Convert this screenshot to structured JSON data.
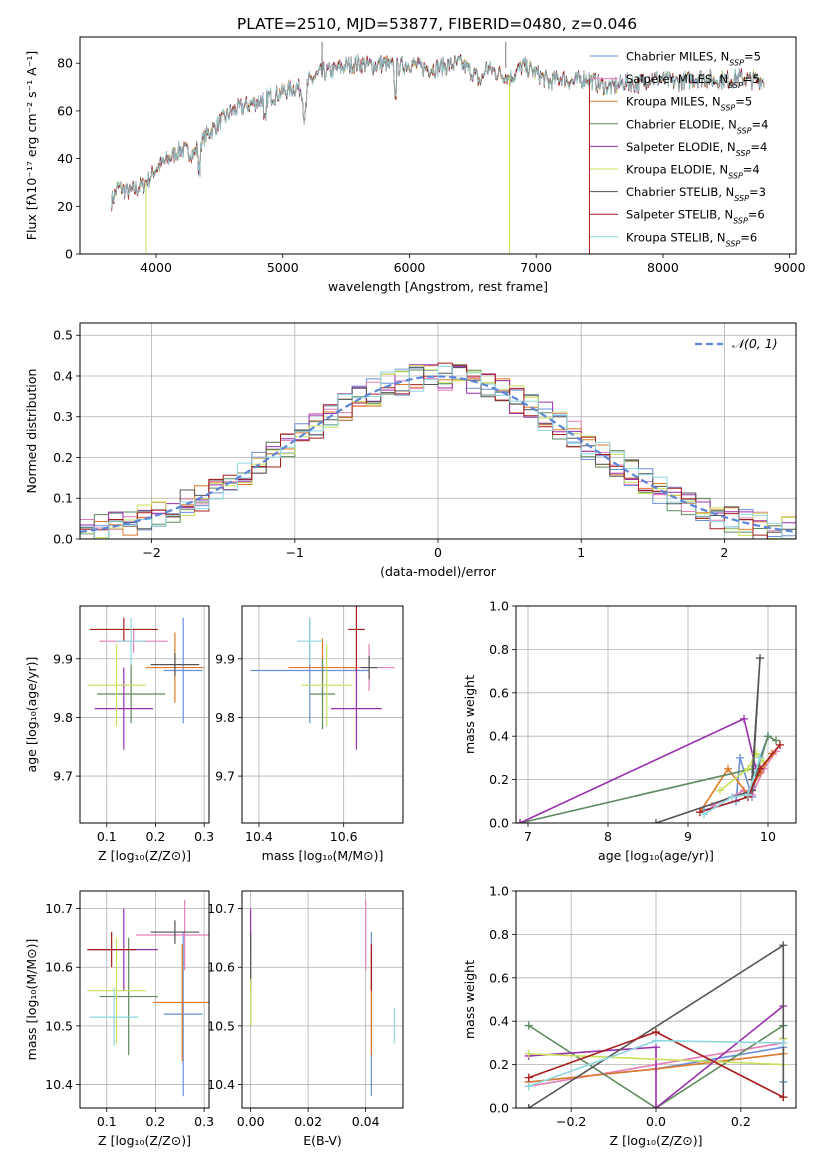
{
  "title": "PLATE=2510, MJD=53877, FIBERID=0480, z=0.046",
  "colors": {
    "Chabrier MILES": "#6a8fd8",
    "Salpeter MILES": "#e57fb8",
    "Kroupa MILES": "#de7a2a",
    "Chabrier ELODIE": "#5e8a5e",
    "Salpeter ELODIE": "#9a2fb0",
    "Kroupa ELODIE": "#c8e05a",
    "Chabrier STELIB": "#555555",
    "Salpeter STELIB": "#a81c1c",
    "Kroupa STELIB": "#8fd8e0"
  },
  "chart_data": [
    {
      "id": "spectrum",
      "type": "line",
      "xlabel": "wavelength [Angstrom, rest frame]",
      "ylabel": "Flux [fλ10⁻¹⁷ erg cm⁻² s⁻¹ A⁻¹]",
      "xlim": [
        3400,
        9050
      ],
      "ylim": [
        0,
        91
      ],
      "xticks": [
        4000,
        5000,
        6000,
        7000,
        8000,
        9000
      ],
      "yticks": [
        0,
        20,
        40,
        60,
        80
      ],
      "legend_position": "right",
      "legend": [
        {
          "name": "Chabrier MILES",
          "nssp": "5"
        },
        {
          "name": "Salpeter MILES",
          "nssp": "5"
        },
        {
          "name": "Kroupa MILES",
          "nssp": "5"
        },
        {
          "name": "Chabrier ELODIE",
          "nssp": "4"
        },
        {
          "name": "Salpeter ELODIE",
          "nssp": "4"
        },
        {
          "name": "Kroupa ELODIE",
          "nssp": "4"
        },
        {
          "name": "Chabrier STELIB",
          "nssp": "3"
        },
        {
          "name": "Salpeter STELIB",
          "nssp": "6"
        },
        {
          "name": "Kroupa STELIB",
          "nssp": "6"
        }
      ],
      "continuum": {
        "x": [
          3650,
          3700,
          3800,
          3900,
          3950,
          4000,
          4100,
          4200,
          4300,
          4400,
          4500,
          4600,
          4700,
          4800,
          4900,
          5000,
          5100,
          5170,
          5200,
          5300,
          5400,
          5500,
          5600,
          5700,
          5800,
          5890,
          5950,
          6000,
          6100,
          6200,
          6300,
          6400,
          6500,
          6562,
          6600,
          6700,
          6800,
          6900,
          7000,
          7100,
          7200,
          7300,
          7400,
          7500,
          7600,
          7700,
          7800,
          7900,
          8000,
          8100,
          8200,
          8300,
          8400,
          8500,
          8600,
          8700,
          8800
        ],
        "y": [
          22,
          28,
          26,
          29,
          32,
          36,
          40,
          44,
          42,
          50,
          55,
          60,
          62,
          64,
          66,
          68,
          70,
          68,
          72,
          76,
          77,
          79,
          80,
          79,
          80,
          78,
          79,
          80,
          78,
          78,
          79,
          80,
          76,
          72,
          78,
          76,
          74,
          79,
          76,
          72,
          74,
          72,
          74,
          71,
          70,
          72,
          71,
          74,
          73,
          72,
          73,
          74,
          73,
          73,
          74,
          73,
          73
        ]
      },
      "dropouts": [
        {
          "series": "Kroupa ELODIE",
          "x": 3920
        },
        {
          "series": "Kroupa ELODIE",
          "x": 6790
        },
        {
          "series": "Salpeter STELIB",
          "x": 7420
        }
      ]
    },
    {
      "id": "residual-histogram",
      "type": "histogram",
      "xlabel": "(data-model)/error",
      "ylabel": "Normed distribution",
      "xlim": [
        -2.5,
        2.5
      ],
      "ylim": [
        0,
        0.53
      ],
      "xticks": [
        -2,
        -1,
        0,
        1,
        2
      ],
      "yticks": [
        0.0,
        0.1,
        0.2,
        0.3,
        0.4,
        0.5
      ],
      "grid": true,
      "legend_position": "top-right",
      "reference_curve": {
        "name": "𝒩(0, 1)",
        "mean": 0,
        "sigma": 1
      },
      "bin_width": 0.1,
      "note_series": "each series is a noisy histogram around the N(0,1) curve"
    },
    {
      "id": "age-vs-metallicity",
      "type": "errorbar",
      "xlabel": "Z [log₁₀(Z/Z⊙)]",
      "ylabel": "age  [log₁₀(age/yr)]",
      "xlim": [
        0.045,
        0.31
      ],
      "ylim": [
        9.62,
        9.99
      ],
      "xticks": [
        0.1,
        0.2,
        0.3
      ],
      "yticks": [
        9.7,
        9.8,
        9.9
      ],
      "grid": true,
      "points": [
        {
          "series": "Chabrier MILES",
          "x": 0.257,
          "y": 9.88,
          "xerr": 0.04,
          "yerr": 0.09
        },
        {
          "series": "Salpeter MILES",
          "x": 0.155,
          "y": 9.93,
          "xerr": 0.07,
          "yerr": 0.02
        },
        {
          "series": "Kroupa MILES",
          "x": 0.24,
          "y": 9.885,
          "xerr": 0.06,
          "yerr": 0.06
        },
        {
          "series": "Chabrier ELODIE",
          "x": 0.15,
          "y": 9.84,
          "xerr": 0.07,
          "yerr": 0.05
        },
        {
          "series": "Salpeter ELODIE",
          "x": 0.135,
          "y": 9.815,
          "xerr": 0.06,
          "yerr": 0.07
        },
        {
          "series": "Kroupa ELODIE",
          "x": 0.12,
          "y": 9.855,
          "xerr": 0.06,
          "yerr": 0.07
        },
        {
          "series": "Chabrier STELIB",
          "x": 0.24,
          "y": 9.89,
          "xerr": 0.05,
          "yerr": 0.02
        },
        {
          "series": "Salpeter STELIB",
          "x": 0.135,
          "y": 9.95,
          "xerr": 0.07,
          "yerr": 0.02
        },
        {
          "series": "Kroupa STELIB",
          "x": 0.15,
          "y": 9.93,
          "xerr": 0.03,
          "yerr": 0.04
        }
      ]
    },
    {
      "id": "age-vs-mass",
      "type": "errorbar",
      "xlabel": "mass [log₁₀(M/M⊙)]",
      "ylabel": "",
      "xlim": [
        10.36,
        10.74
      ],
      "ylim": [
        9.62,
        9.99
      ],
      "xticks": [
        10.4,
        10.6
      ],
      "yticks": [
        9.7,
        9.8,
        9.9
      ],
      "grid": true,
      "points": [
        {
          "series": "Chabrier MILES",
          "x": 10.52,
          "y": 9.88,
          "xerr": 0.14,
          "yerr": 0.09
        },
        {
          "series": "Salpeter MILES",
          "x": 10.66,
          "y": 9.885,
          "xerr": 0.06,
          "yerr": 0.04
        },
        {
          "series": "Kroupa MILES",
          "x": 10.55,
          "y": 9.885,
          "xerr": 0.08,
          "yerr": 0.05
        },
        {
          "series": "Chabrier ELODIE",
          "x": 10.55,
          "y": 9.84,
          "xerr": 0.03,
          "yerr": 0.06
        },
        {
          "series": "Salpeter ELODIE",
          "x": 10.63,
          "y": 9.815,
          "xerr": 0.06,
          "yerr": 0.07
        },
        {
          "series": "Kroupa ELODIE",
          "x": 10.56,
          "y": 9.855,
          "xerr": 0.06,
          "yerr": 0.07
        },
        {
          "series": "Chabrier STELIB",
          "x": 10.66,
          "y": 9.885,
          "xerr": 0.02,
          "yerr": 0.02
        },
        {
          "series": "Salpeter STELIB",
          "x": 10.63,
          "y": 9.95,
          "xerr": 0.02,
          "yerr": 0.07
        },
        {
          "series": "Kroupa STELIB",
          "x": 10.52,
          "y": 9.93,
          "xerr": 0.03,
          "yerr": 0.04
        }
      ]
    },
    {
      "id": "weight-vs-age",
      "type": "line",
      "xlabel": "age  [log₁₀(age/yr)]",
      "ylabel": "mass weight",
      "xlim": [
        6.85,
        10.35
      ],
      "ylim": [
        0,
        1.0
      ],
      "xticks": [
        7,
        8,
        9,
        10
      ],
      "yticks": [
        0.0,
        0.2,
        0.4,
        0.6,
        0.8,
        1.0
      ],
      "grid": true,
      "series": [
        {
          "name": "Chabrier MILES",
          "x": [
            9.2,
            9.6,
            9.65,
            9.8,
            9.9,
            10.0
          ],
          "y": [
            0.06,
            0.1,
            0.3,
            0.12,
            0.3,
            0.4
          ]
        },
        {
          "name": "Salpeter MILES",
          "x": [
            9.3,
            9.7,
            9.8,
            9.95,
            10.1
          ],
          "y": [
            0.08,
            0.15,
            0.13,
            0.25,
            0.33
          ]
        },
        {
          "name": "Kroupa MILES",
          "x": [
            9.15,
            9.5,
            9.75,
            9.9,
            10.05
          ],
          "y": [
            0.05,
            0.25,
            0.13,
            0.23,
            0.32
          ]
        },
        {
          "name": "Chabrier ELODIE",
          "x": [
            6.9,
            9.8,
            9.85,
            10.0,
            10.1
          ],
          "y": [
            0.0,
            0.25,
            0.22,
            0.4,
            0.38
          ]
        },
        {
          "name": "Salpeter ELODIE",
          "x": [
            6.9,
            9.7,
            9.85
          ],
          "y": [
            0.0,
            0.48,
            0.25
          ]
        },
        {
          "name": "Kroupa ELODIE",
          "x": [
            9.4,
            9.75,
            9.85,
            9.95
          ],
          "y": [
            0.15,
            0.25,
            0.32,
            0.28
          ]
        },
        {
          "name": "Chabrier STELIB",
          "x": [
            8.6,
            9.8,
            9.9,
            9.8
          ],
          "y": [
            0.0,
            0.15,
            0.76,
            0.2
          ]
        },
        {
          "name": "Salpeter STELIB",
          "x": [
            9.15,
            9.75,
            9.9,
            10.15
          ],
          "y": [
            0.05,
            0.12,
            0.25,
            0.36
          ]
        },
        {
          "name": "Kroupa STELIB",
          "x": [
            9.2,
            9.55,
            9.75,
            9.9
          ],
          "y": [
            0.04,
            0.12,
            0.13,
            0.3
          ]
        }
      ]
    },
    {
      "id": "mass-vs-metallicity",
      "type": "errorbar",
      "xlabel": "Z [log₁₀(Z/Z⊙)]",
      "ylabel": "mass [log₁₀(M/M⊙)]",
      "xlim": [
        0.045,
        0.31
      ],
      "ylim": [
        10.36,
        10.73
      ],
      "xticks": [
        0.1,
        0.2,
        0.3
      ],
      "yticks": [
        10.4,
        10.5,
        10.6,
        10.7
      ],
      "grid": true,
      "points": [
        {
          "series": "Chabrier MILES",
          "x": 0.257,
          "y": 10.52,
          "xerr": 0.04,
          "yerr": 0.14
        },
        {
          "series": "Salpeter MILES",
          "x": 0.26,
          "y": 10.655,
          "xerr": 0.1,
          "yerr": 0.06
        },
        {
          "series": "Kroupa MILES",
          "x": 0.255,
          "y": 10.54,
          "xerr": 0.06,
          "yerr": 0.1
        },
        {
          "series": "Chabrier ELODIE",
          "x": 0.145,
          "y": 10.55,
          "xerr": 0.06,
          "yerr": 0.1
        },
        {
          "series": "Salpeter ELODIE",
          "x": 0.135,
          "y": 10.63,
          "xerr": 0.07,
          "yerr": 0.07
        },
        {
          "series": "Kroupa ELODIE",
          "x": 0.12,
          "y": 10.56,
          "xerr": 0.06,
          "yerr": 0.09
        },
        {
          "series": "Chabrier STELIB",
          "x": 0.24,
          "y": 10.66,
          "xerr": 0.05,
          "yerr": 0.02
        },
        {
          "series": "Salpeter STELIB",
          "x": 0.11,
          "y": 10.63,
          "xerr": 0.05,
          "yerr": 0.03
        },
        {
          "series": "Kroupa STELIB",
          "x": 0.115,
          "y": 10.515,
          "xerr": 0.05,
          "yerr": 0.05
        }
      ]
    },
    {
      "id": "mass-vs-ebv",
      "type": "errorbar",
      "xlabel": "E(B-V)",
      "ylabel": "",
      "xlim": [
        -0.003,
        0.053
      ],
      "ylim": [
        10.36,
        10.73
      ],
      "xticks": [
        0.0,
        0.02,
        0.04
      ],
      "yticks": [
        10.4,
        10.5,
        10.6,
        10.7
      ],
      "grid": true,
      "points": [
        {
          "series": "Chabrier MILES",
          "x": 0.042,
          "y": 10.52,
          "xerr": 0,
          "yerr": 0.14
        },
        {
          "series": "Salpeter MILES",
          "x": 0.04,
          "y": 10.655,
          "xerr": 0,
          "yerr": 0.06
        },
        {
          "series": "Kroupa MILES",
          "x": 0.042,
          "y": 10.54,
          "xerr": 0,
          "yerr": 0.09
        },
        {
          "series": "Chabrier ELODIE",
          "x": 0.0,
          "y": 10.55,
          "xerr": 0,
          "yerr": 0.05
        },
        {
          "series": "Salpeter ELODIE",
          "x": 0.0,
          "y": 10.63,
          "xerr": 0,
          "yerr": 0.07
        },
        {
          "series": "Kroupa ELODIE",
          "x": 0.0,
          "y": 10.56,
          "xerr": 0,
          "yerr": 0.06
        },
        {
          "series": "Chabrier STELIB",
          "x": 0.0,
          "y": 10.62,
          "xerr": 0,
          "yerr": 0.04
        },
        {
          "series": "Salpeter STELIB",
          "x": 0.042,
          "y": 10.6,
          "xerr": 0,
          "yerr": 0.04
        },
        {
          "series": "Kroupa STELIB",
          "x": 0.05,
          "y": 10.5,
          "xerr": 0,
          "yerr": 0.03
        }
      ]
    },
    {
      "id": "weight-vs-metallicity",
      "type": "line",
      "xlabel": "Z [log₁₀(Z/Z⊙)]",
      "ylabel": "mass weight",
      "xlim": [
        -0.33,
        0.33
      ],
      "ylim": [
        0,
        1.0
      ],
      "xticks": [
        -0.2,
        0.0,
        0.2
      ],
      "yticks": [
        0.0,
        0.2,
        0.4,
        0.6,
        0.8,
        1.0
      ],
      "grid": true,
      "series": [
        {
          "name": "Chabrier MILES",
          "x": [
            -0.3,
            0.0,
            0.3,
            0.3
          ],
          "y": [
            0.12,
            0.18,
            0.28,
            0.12
          ]
        },
        {
          "name": "Salpeter MILES",
          "x": [
            -0.3,
            0.0,
            0.3
          ],
          "y": [
            0.1,
            0.2,
            0.3
          ]
        },
        {
          "name": "Kroupa MILES",
          "x": [
            -0.3,
            0.0,
            0.3,
            0.3
          ],
          "y": [
            0.12,
            0.18,
            0.25,
            0.32
          ]
        },
        {
          "name": "Chabrier ELODIE",
          "x": [
            -0.3,
            0.0,
            0.3
          ],
          "y": [
            0.38,
            0.0,
            0.38
          ]
        },
        {
          "name": "Salpeter ELODIE",
          "x": [
            -0.3,
            0.0,
            0.0,
            0.3
          ],
          "y": [
            0.24,
            0.28,
            0.0,
            0.47
          ]
        },
        {
          "name": "Kroupa ELODIE",
          "x": [
            -0.3,
            0.3,
            0.3
          ],
          "y": [
            0.25,
            0.2,
            0.32
          ]
        },
        {
          "name": "Chabrier STELIB",
          "x": [
            -0.3,
            0.3,
            0.3
          ],
          "y": [
            0.0,
            0.75,
            0.05
          ]
        },
        {
          "name": "Salpeter STELIB",
          "x": [
            -0.3,
            0.0,
            0.3
          ],
          "y": [
            0.14,
            0.35,
            0.05
          ]
        },
        {
          "name": "Kroupa STELIB",
          "x": [
            -0.3,
            0.0,
            0.3
          ],
          "y": [
            0.1,
            0.31,
            0.3
          ]
        }
      ]
    }
  ]
}
